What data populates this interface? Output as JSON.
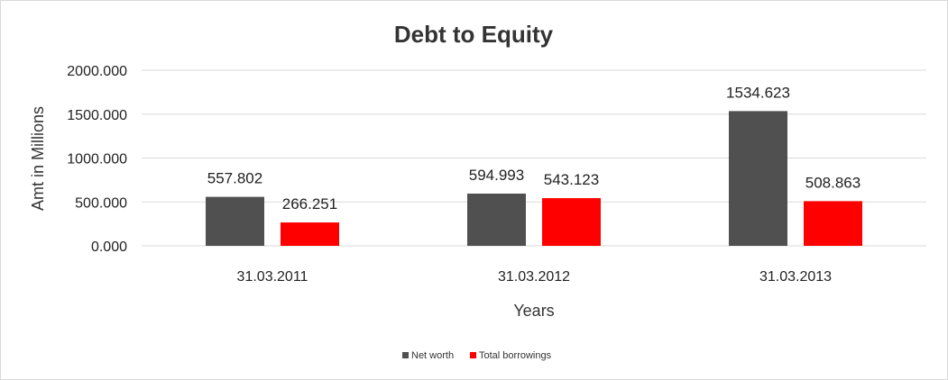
{
  "chart_data": {
    "type": "bar",
    "title": "Debt to Equity",
    "xlabel": "Years",
    "ylabel": "Amt in Millions",
    "categories": [
      "31.03.2011",
      "31.03.2012",
      "31.03.2013"
    ],
    "series": [
      {
        "name": "Net worth",
        "color": "#505050",
        "values": [
          557.802,
          594.993,
          1534.623
        ],
        "labels": [
          "557.802",
          "594.993",
          "1534.623"
        ]
      },
      {
        "name": "Total borrowings",
        "color": "#ff0000",
        "values": [
          266.251,
          543.123,
          508.863
        ],
        "labels": [
          "266.251",
          "543.123",
          "508.863"
        ]
      }
    ],
    "yticks": [
      0,
      500,
      1000,
      1500,
      2000
    ],
    "ytick_labels": [
      "0.000",
      "500.000",
      "1000.000",
      "1500.000",
      "2000.000"
    ],
    "ylim": [
      0,
      2000
    ],
    "grid": true,
    "legend_position": "bottom"
  }
}
